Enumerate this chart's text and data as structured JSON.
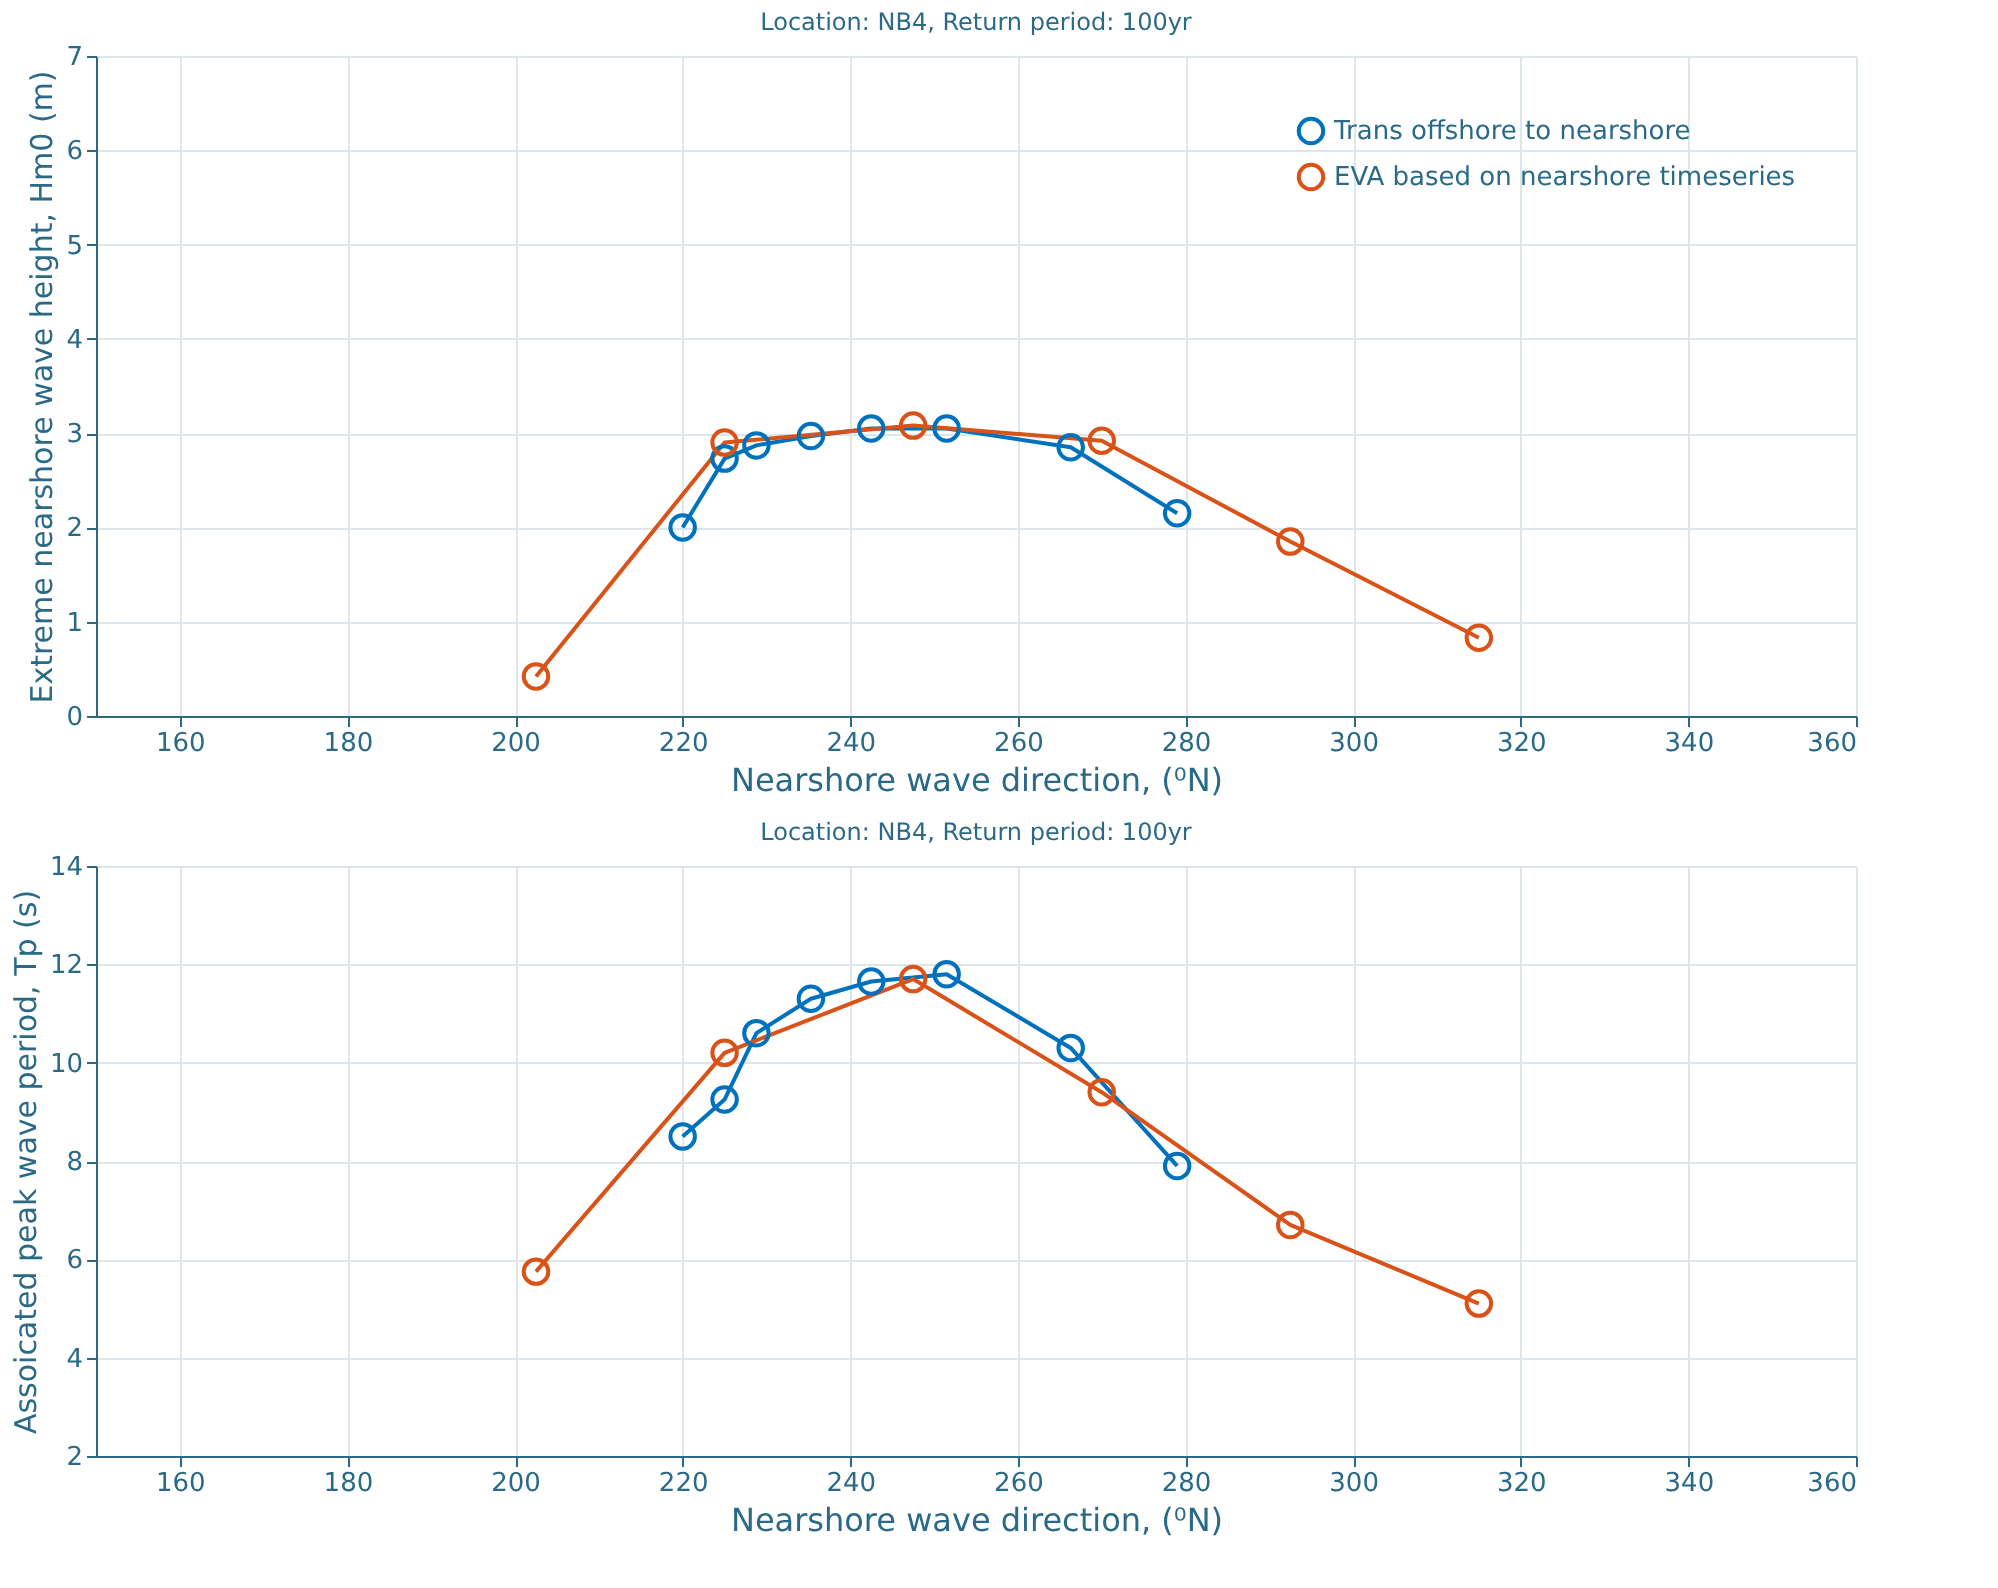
{
  "chart_data": [
    {
      "type": "line",
      "title": "Location: NB4, Return period: 100yr",
      "xlabel": "Nearshore wave direction, (⁰N)",
      "ylabel": "Extreme nearshore wave height, Hm0 (m)",
      "xlim": [
        150,
        360
      ],
      "xticks": [
        160,
        180,
        200,
        220,
        240,
        260,
        280,
        300,
        320,
        340,
        360
      ],
      "ylim": [
        0,
        7
      ],
      "yticks": [
        0,
        1,
        2,
        3,
        4,
        5,
        6,
        7
      ],
      "grid": true,
      "legend": "top right",
      "marker": "circle",
      "line_style": "solid",
      "series": [
        {
          "name": "Trans offshore to nearshore",
          "color": "#0072bd",
          "x": [
            220,
            225,
            228.8,
            235.3,
            242.5,
            251.5,
            266.3,
            279
          ],
          "values": [
            2.0,
            2.73,
            2.87,
            2.97,
            3.05,
            3.05,
            2.85,
            2.15
          ]
        },
        {
          "name": "EVA based on nearshore timeseries",
          "color": "#d95319",
          "x": [
            202.5,
            225,
            247.5,
            270,
            292.5,
            315
          ],
          "values": [
            0.42,
            2.9,
            3.08,
            2.92,
            1.85,
            0.83
          ]
        }
      ]
    },
    {
      "type": "line",
      "title": "Location: NB4, Return period: 100yr",
      "xlabel": "Nearshore wave direction, (⁰N)",
      "ylabel": "Assoicated peak wave period, Tp (s)",
      "xlim": [
        150,
        360
      ],
      "xticks": [
        160,
        180,
        200,
        220,
        240,
        260,
        280,
        300,
        320,
        340,
        360
      ],
      "ylim": [
        2,
        14
      ],
      "yticks": [
        2,
        4,
        6,
        8,
        10,
        12,
        14
      ],
      "grid": true,
      "legend": "top right",
      "marker": "circle",
      "line_style": "solid",
      "series": [
        {
          "name": "Trans offshore to nearshore",
          "color": "#0072bd",
          "x": [
            220,
            225,
            228.8,
            235.3,
            242.5,
            251.5,
            266.3,
            279
          ],
          "values": [
            8.5,
            9.25,
            10.6,
            11.3,
            11.65,
            11.8,
            10.3,
            7.9
          ]
        },
        {
          "name": "EVA based on nearshore timeseries",
          "color": "#d95319",
          "x": [
            202.5,
            225,
            247.5,
            270,
            292.5,
            315
          ],
          "values": [
            5.75,
            10.2,
            11.7,
            9.4,
            6.7,
            5.1
          ]
        }
      ]
    }
  ]
}
